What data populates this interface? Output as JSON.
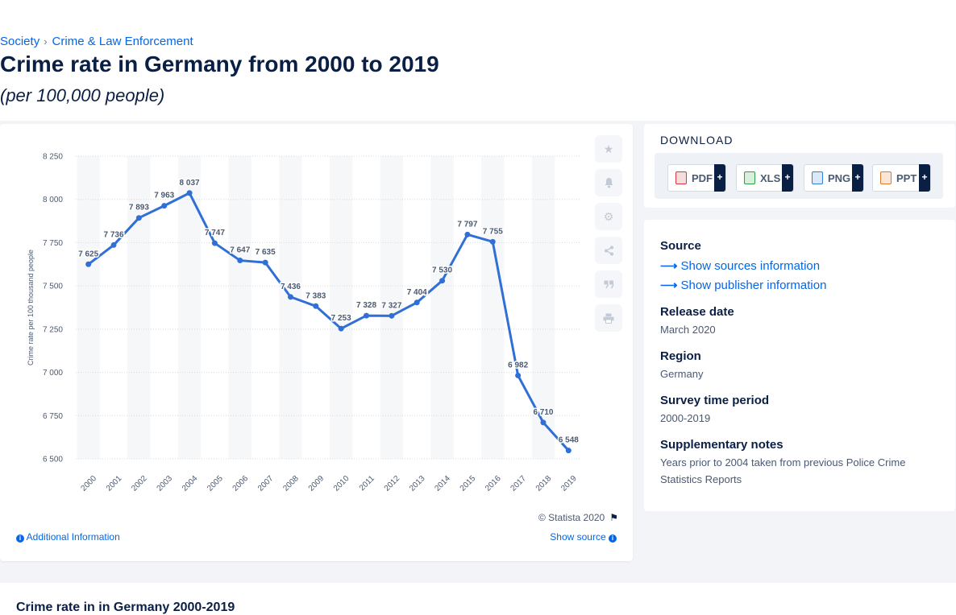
{
  "breadcrumb": {
    "items": [
      "Society",
      "Crime & Law Enforcement"
    ],
    "separator": "›"
  },
  "page": {
    "title": "Crime rate in Germany from 2000 to 2019",
    "subtitle": "(per 100,000 people)"
  },
  "chart_data": {
    "type": "line",
    "categories": [
      "2000",
      "2001",
      "2002",
      "2003",
      "2004",
      "2005",
      "2006",
      "2007",
      "2008",
      "2009",
      "2010",
      "2011",
      "2012",
      "2013",
      "2014",
      "2015",
      "2016",
      "2017",
      "2018",
      "2019"
    ],
    "values": [
      7625,
      7736,
      7893,
      7963,
      8037,
      7747,
      7647,
      7635,
      7436,
      7383,
      7253,
      7328,
      7327,
      7404,
      7530,
      7797,
      7755,
      6982,
      6710,
      6548
    ],
    "value_labels": [
      "7 625",
      "7 736",
      "7 893",
      "7 963",
      "8 037",
      "7 747",
      "7 647",
      "7 635",
      "7 436",
      "7 383",
      "7 253",
      "7 328",
      "7 327",
      "7 404",
      "7 530",
      "7 797",
      "7 755",
      "6 982",
      "6 710",
      "6 548"
    ],
    "yticks": [
      6500,
      6750,
      7000,
      7250,
      7500,
      7750,
      8000,
      8250
    ],
    "ytick_labels": [
      "6 500",
      "6 750",
      "7 000",
      "7 250",
      "7 500",
      "7 750",
      "8 000",
      "8 250"
    ],
    "ylim": [
      6500,
      8250
    ],
    "ylabel": "Crime rate per 100 thousand people",
    "xlabel": "",
    "grid": true,
    "color": "#2f6fd6"
  },
  "chart_footer": {
    "copyright": "© Statista 2020",
    "additional_info": "Additional Information",
    "show_source": "Show source"
  },
  "download": {
    "title": "DOWNLOAD",
    "buttons": [
      {
        "label": "PDF",
        "color": "#d9363e"
      },
      {
        "label": "XLS",
        "color": "#2e9e44"
      },
      {
        "label": "PNG",
        "color": "#2f7fd6"
      },
      {
        "label": "PPT",
        "color": "#e0792b"
      }
    ],
    "plus": "+"
  },
  "meta": {
    "source_heading": "Source",
    "sources_link": "Show sources information",
    "publisher_link": "Show publisher information",
    "release_heading": "Release date",
    "release_value": "March 2020",
    "region_heading": "Region",
    "region_value": "Germany",
    "survey_heading": "Survey time period",
    "survey_value": "2000-2019",
    "notes_heading": "Supplementary notes",
    "notes_value": "Years prior to 2004 taken from previous Police Crime Statistics Reports"
  },
  "bottom": {
    "title": "Crime rate in in Germany 2000-2019"
  },
  "tools": [
    "star-icon",
    "bell-icon",
    "gear-icon",
    "share-icon",
    "quote-icon",
    "print-icon"
  ]
}
